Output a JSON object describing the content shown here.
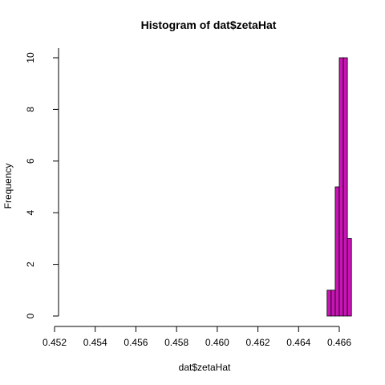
{
  "chart_data": {
    "type": "bar",
    "title": "Histogram of dat$zetaHat",
    "xlabel": "dat$zetaHat",
    "ylabel": "Frequency",
    "x_ticks": [
      "0.452",
      "0.454",
      "0.456",
      "0.458",
      "0.460",
      "0.462",
      "0.464",
      "0.466"
    ],
    "y_ticks": [
      "0",
      "2",
      "4",
      "6",
      "8",
      "10"
    ],
    "xlim": [
      0.452,
      0.4666
    ],
    "ylim": [
      0,
      10
    ],
    "grid": false,
    "bar_color": "#c814b4",
    "bins": [
      {
        "x0": 0.4654,
        "x1": 0.4656,
        "count": 1
      },
      {
        "x0": 0.4656,
        "x1": 0.4658,
        "count": 1
      },
      {
        "x0": 0.4658,
        "x1": 0.466,
        "count": 5
      },
      {
        "x0": 0.466,
        "x1": 0.4662,
        "count": 10
      },
      {
        "x0": 0.4662,
        "x1": 0.4664,
        "count": 10
      },
      {
        "x0": 0.4664,
        "x1": 0.4666,
        "count": 3
      }
    ]
  }
}
